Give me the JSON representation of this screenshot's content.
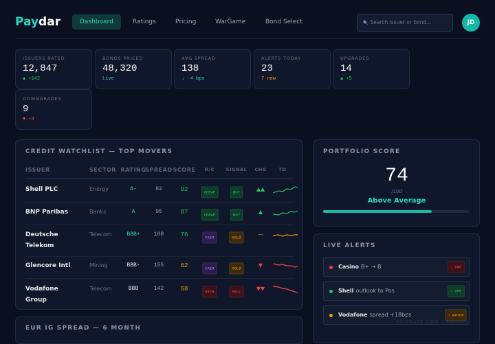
{
  "header": {
    "logo": {
      "accent": "Pay",
      "rest": "dar"
    },
    "nav": [
      "Dashboard",
      "Ratings",
      "Pricing",
      "WarGame",
      "Bond Select"
    ],
    "search": {
      "icon": "🔍",
      "placeholder": "Search issuer or bond..."
    },
    "avatar": "JD"
  },
  "kpis": [
    {
      "label": "ISSUERS RATED",
      "value": "12,847",
      "delta": "▲ +142"
    },
    {
      "label": "BONDS PRICED",
      "value": "48,320",
      "delta": "Live"
    },
    {
      "label": "AVG SPREAD",
      "value": "138",
      "delta": "↓ -4 bps"
    },
    {
      "label": "ALERTS TODAY",
      "value": "23",
      "delta": "7 new"
    },
    {
      "label": "UPGRADES",
      "value": "14",
      "delta": "▲ +5"
    },
    {
      "label": "DOWNGRADES",
      "value": "9",
      "delta": "▼ +3"
    }
  ],
  "watchlist": {
    "title": "CREDIT WATCHLIST — TOP MOVERS",
    "columns": [
      "ISSUER",
      "SECTOR",
      "RATING",
      "SPREAD",
      "SCORE",
      "R/C",
      "SIGNAL",
      "CHG",
      "7D"
    ],
    "rows": [
      [
        "Shell PLC",
        "Energy",
        "A-",
        "82",
        "92",
        "CHEAP",
        "BUY",
        "▲▲"
      ],
      [
        "BNP Paribas",
        "Banks",
        "A",
        "95",
        "87",
        "CHEAP",
        "BUY",
        "▲"
      ],
      [
        "Deutsche Telekom",
        "Telecom",
        "BBB+",
        "108",
        "76",
        "FAIR",
        "HOLD",
        "—"
      ],
      [
        "Glencore Intl",
        "Mining",
        "BBB-",
        "155",
        "62",
        "FAIR",
        "HOLD",
        "▼"
      ],
      [
        "Vodafone Group",
        "Telecom",
        "BBB",
        "142",
        "58",
        "RICH",
        "SELL",
        "▼▼"
      ]
    ]
  },
  "spread_panel": {
    "title": "EUR IG SPREAD — 6 MONTH"
  },
  "portfolio": {
    "title": "PORTFOLIO SCORE",
    "score": 74,
    "max": {
      "value": 100,
      "label": "/100"
    },
    "rating": "Above Average"
  },
  "alerts": {
    "title": "LIVE ALERTS",
    "items": [
      {
        "issuer": "Casino",
        "detail": "B+ → B",
        "tag": "↓ DNG"
      },
      {
        "issuer": "Shell",
        "detail": "outlook to Pos",
        "tag": "↑ UPG"
      },
      {
        "issuer": "Vodafone",
        "detail": "spread +18bps",
        "tag": "! WATCH"
      }
    ]
  },
  "watermark": "SOMRATE.COM / PAYDAR"
}
